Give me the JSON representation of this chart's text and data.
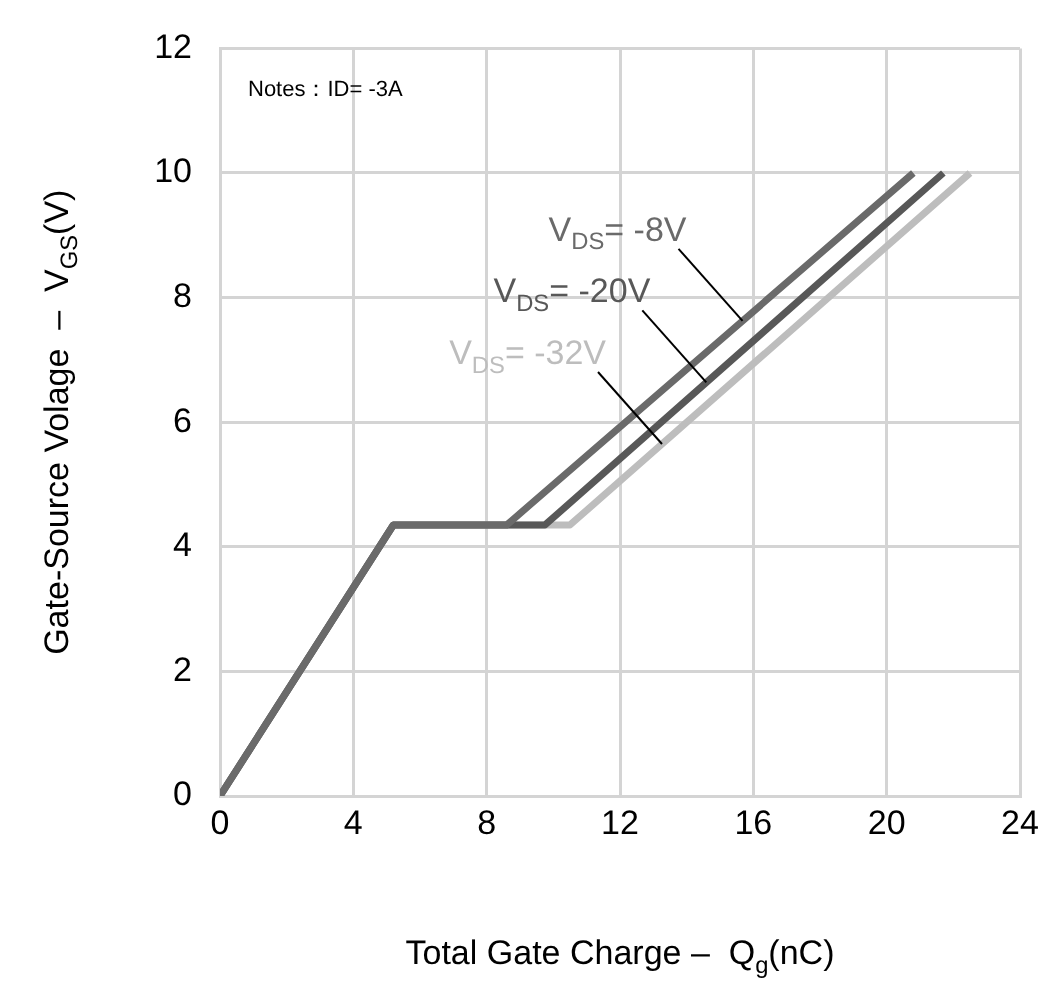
{
  "chart_data": {
    "type": "line",
    "xlabel": "Total Gate Charge –  Q$_{g}$(nC)",
    "ylabel": "Gate-Source Volage  –  V$_{GS}$(V)",
    "xlim": [
      0,
      24
    ],
    "xticks": [
      0,
      4,
      8,
      12,
      16,
      20,
      24
    ],
    "ylim": [
      0,
      12
    ],
    "yticks": [
      0,
      2,
      4,
      6,
      8,
      10,
      12
    ],
    "grid": true,
    "legend": false,
    "marker": "none",
    "line_style": "solid",
    "annotations": [
      "Notes：ID= -3A"
    ],
    "series": [
      {
        "name": "V$_{DS}$= -8V",
        "color": "#6a6a6a",
        "x": [
          0,
          5.2,
          8.6,
          20.8
        ],
        "values": [
          0,
          4.35,
          4.35,
          10
        ]
      },
      {
        "name": "V$_{DS}$= -20V",
        "color": "#585858",
        "x": [
          0,
          5.2,
          9.75,
          21.7
        ],
        "values": [
          0,
          4.35,
          4.35,
          10
        ]
      },
      {
        "name": "V$_{DS}$= -32V",
        "color": "#bdbdbd",
        "x": [
          0,
          5.2,
          10.5,
          22.5
        ],
        "values": [
          0,
          4.35,
          4.35,
          10
        ]
      }
    ]
  }
}
